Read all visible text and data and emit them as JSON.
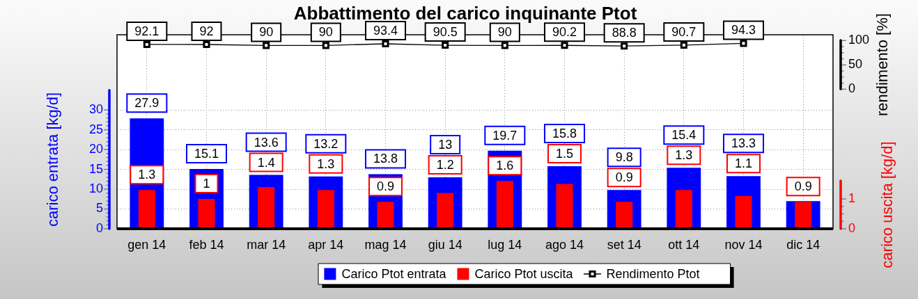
{
  "chart_data": {
    "type": "bar",
    "title": "Abbattimento del carico inquinante Ptot",
    "ylabel": "carico entrata [kg/d]",
    "y2label": "carico uscita [kg/d]",
    "y3label": "rendimento [%]",
    "categories": [
      "gen 14",
      "feb 14",
      "mar 14",
      "apr 14",
      "mag 14",
      "giu 14",
      "lug 14",
      "ago 14",
      "set 14",
      "ott 14",
      "nov 14",
      "dic 14"
    ],
    "series": [
      {
        "name": "Carico Ptot entrata",
        "color": "#0000ff",
        "values": [
          27.9,
          15.1,
          13.6,
          13.2,
          13.8,
          13,
          19.7,
          15.8,
          9.8,
          15.4,
          13.3,
          7
        ],
        "value_labels": [
          "27.9",
          "15.1",
          "13.6",
          "13.2",
          "13.8",
          "13",
          "19.7",
          "15.8",
          "9.8",
          "15.4",
          "13.3",
          null
        ]
      },
      {
        "name": "Carico Ptot uscita",
        "color": "#ff0000",
        "axis": "y2",
        "values": [
          1.3,
          1,
          1.4,
          1.3,
          0.9,
          1.2,
          1.6,
          1.5,
          0.9,
          1.3,
          1.1,
          0.9
        ],
        "value_labels": [
          "1.3",
          "1",
          "1.4",
          "1.3",
          "0.9",
          "1.2",
          "1.6",
          "1.5",
          "0.9",
          "1.3",
          "1.1",
          "0.9"
        ]
      },
      {
        "name": "Rendimento Ptot",
        "type": "line",
        "color": "#000000",
        "axis": "y3",
        "values": [
          92.1,
          92,
          90,
          90,
          93.4,
          90.5,
          90,
          90.2,
          88.8,
          90.7,
          94.3,
          null
        ],
        "value_labels": [
          "92.1",
          "92",
          "90",
          "90",
          "93.4",
          "90.5",
          "90",
          "90.2",
          "88.8",
          "90.7",
          "94.3",
          null
        ]
      }
    ],
    "ylim": [
      0,
      49
    ],
    "yticks": [
      0,
      {
        "value": 1,
        "label": null
      },
      {
        "value": 2,
        "label": null
      },
      {
        "value": 3,
        "label": null
      },
      {
        "value": 4,
        "label": null
      },
      5,
      {
        "value": 6,
        "label": null
      },
      {
        "value": 7,
        "label": null
      },
      {
        "value": 8,
        "label": null
      },
      {
        "value": 9,
        "label": null
      },
      10,
      {
        "value": 11,
        "label": null
      },
      {
        "value": 12,
        "label": null
      },
      {
        "value": 13,
        "label": null
      },
      {
        "value": 14,
        "label": null
      },
      15,
      {
        "value": 16,
        "label": null
      },
      {
        "value": 17,
        "label": null
      },
      {
        "value": 18,
        "label": null
      },
      {
        "value": 19,
        "label": null
      },
      20,
      {
        "value": 21,
        "label": null
      },
      {
        "value": 22,
        "label": null
      },
      {
        "value": 23,
        "label": null
      },
      {
        "value": 24,
        "label": null
      },
      25,
      {
        "value": 26,
        "label": null
      },
      {
        "value": 27,
        "label": null
      },
      {
        "value": 28,
        "label": null
      },
      {
        "value": 29,
        "label": null
      },
      30
    ],
    "y2lim": [
      0,
      6.5
    ],
    "y2ticks": [
      0,
      {
        "value": 0.25,
        "label": null
      },
      {
        "value": 0.5,
        "label": null
      },
      {
        "value": 0.75,
        "label": null
      },
      1
    ],
    "y3lim": [
      -287,
      112
    ],
    "y3ticks": [
      0,
      {
        "value": 12.5,
        "label": null
      },
      {
        "value": 25,
        "label": null
      },
      {
        "value": 37.5,
        "label": null
      },
      50,
      {
        "value": 62.5,
        "label": null
      },
      {
        "value": 75,
        "label": null
      },
      {
        "value": 87.5,
        "label": null
      },
      100
    ],
    "grid": true,
    "legend": "bottom",
    "marker": "square"
  }
}
